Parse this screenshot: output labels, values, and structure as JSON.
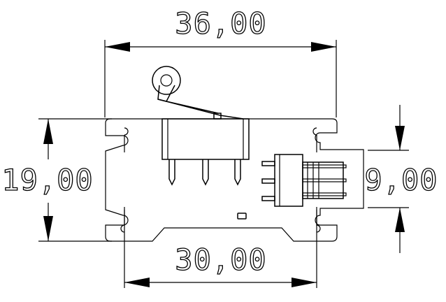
{
  "dimensions": {
    "overall_width": "36,00",
    "overall_height": "19,00",
    "connector_height": "9,00",
    "hole_spacing": "30,00"
  }
}
